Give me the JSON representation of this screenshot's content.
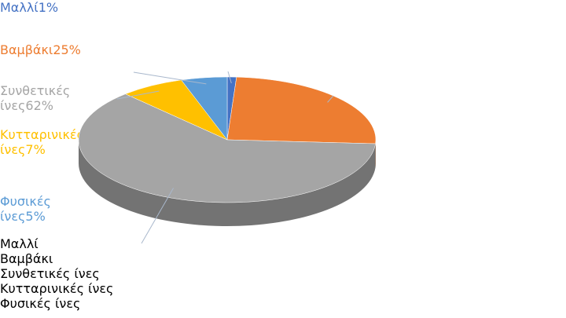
{
  "chart_data": {
    "type": "pie3d",
    "categories": [
      "Μαλλί",
      "Βαμβάκι",
      "Συνθετικές ίνες",
      "Κυτταρινικές ίνες",
      "Φυσικές ίνες"
    ],
    "values": [
      1,
      25,
      62,
      7,
      5
    ],
    "value_labels": [
      "1%",
      "25%",
      "62%",
      "7%",
      "5%"
    ],
    "colors": [
      "#4472c4",
      "#ed7d31",
      "#a5a5a5",
      "#ffc000",
      "#5b9bd5"
    ],
    "legend": "right"
  }
}
